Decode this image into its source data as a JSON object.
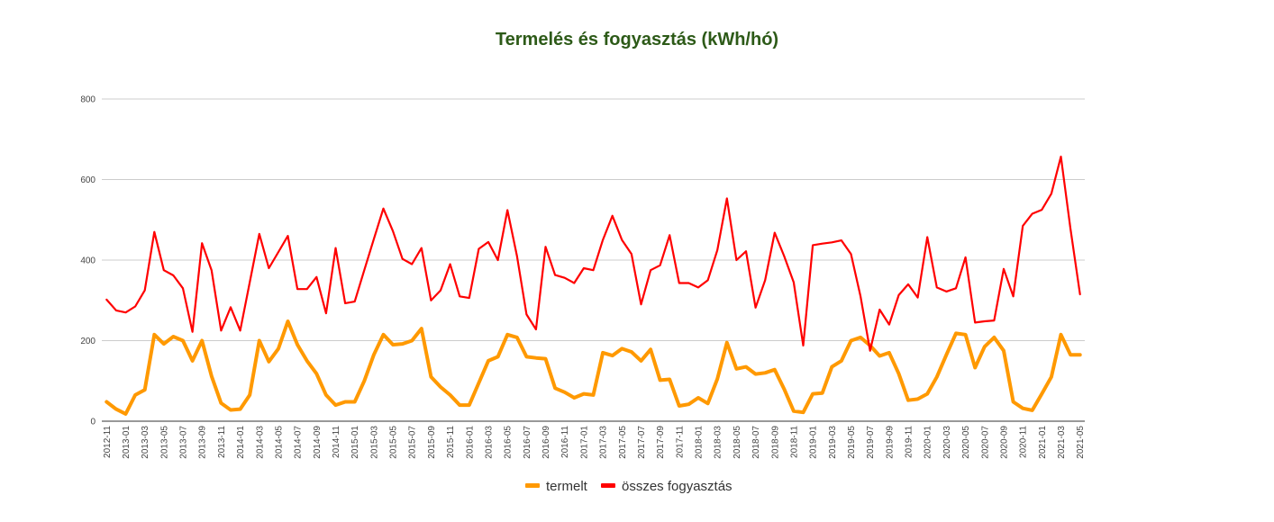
{
  "chart_data": {
    "type": "line",
    "title": "Termelés és fogyasztás (kWh/hó)",
    "xlabel": "",
    "ylabel": "",
    "ylim": [
      0,
      800
    ],
    "yticks": [
      "0",
      "200",
      "400",
      "600",
      "800"
    ],
    "grid": true,
    "legend_position": "bottom",
    "x": [
      "2012-11",
      "2012-12",
      "2013-01",
      "2013-02",
      "2013-03",
      "2013-04",
      "2013-05",
      "2013-06",
      "2013-07",
      "2013-08",
      "2013-09",
      "2013-10",
      "2013-11",
      "2013-12",
      "2014-01",
      "2014-02",
      "2014-03",
      "2014-04",
      "2014-05",
      "2014-06",
      "2014-07",
      "2014-08",
      "2014-09",
      "2014-10",
      "2014-11",
      "2014-12",
      "2015-01",
      "2015-02",
      "2015-03",
      "2015-04",
      "2015-05",
      "2015-06",
      "2015-07",
      "2015-08",
      "2015-09",
      "2015-10",
      "2015-11",
      "2015-12",
      "2016-01",
      "2016-02",
      "2016-03",
      "2016-04",
      "2016-05",
      "2016-06",
      "2016-07",
      "2016-08",
      "2016-09",
      "2016-10",
      "2016-11",
      "2016-12",
      "2017-01",
      "2017-02",
      "2017-03",
      "2017-04",
      "2017-05",
      "2017-06",
      "2017-07",
      "2017-08",
      "2017-09",
      "2017-10",
      "2017-11",
      "2017-12",
      "2018-01",
      "2018-02",
      "2018-03",
      "2018-04",
      "2018-05",
      "2018-06",
      "2018-07",
      "2018-08",
      "2018-09",
      "2018-10",
      "2018-11",
      "2018-12",
      "2019-01",
      "2019-02",
      "2019-03",
      "2019-04",
      "2019-05",
      "2019-06",
      "2019-07",
      "2019-08",
      "2019-09",
      "2019-10",
      "2019-11",
      "2019-12",
      "2020-01",
      "2020-02",
      "2020-03",
      "2020-04",
      "2020-05",
      "2020-06",
      "2020-07",
      "2020-08",
      "2020-09",
      "2020-10",
      "2020-11",
      "2020-12",
      "2021-01",
      "2021-02",
      "2021-03",
      "2021-04",
      "2021-05"
    ],
    "series": [
      {
        "name": "termelt",
        "color": "#FF9900",
        "values": [
          48,
          30,
          18,
          65,
          78,
          215,
          192,
          210,
          200,
          150,
          200,
          112,
          45,
          28,
          30,
          65,
          200,
          148,
          180,
          248,
          190,
          150,
          118,
          65,
          40,
          48,
          48,
          100,
          165,
          215,
          190,
          192,
          200,
          230,
          110,
          85,
          65,
          40,
          40,
          95,
          150,
          160,
          215,
          208,
          160,
          157,
          155,
          82,
          72,
          58,
          68,
          65,
          170,
          163,
          180,
          172,
          150,
          178,
          102,
          104,
          38,
          42,
          58,
          44,
          105,
          195,
          130,
          135,
          117,
          120,
          128,
          80,
          25,
          22,
          68,
          70,
          135,
          150,
          200,
          208,
          188,
          162,
          170,
          118,
          52,
          55,
          68,
          110,
          165,
          218,
          215,
          133,
          185,
          208,
          175,
          48,
          32,
          27,
          68,
          110,
          215,
          165,
          165
        ]
      },
      {
        "name": "összes fogyasztás",
        "color": "#FF0000",
        "values": [
          302,
          275,
          270,
          285,
          325,
          470,
          375,
          362,
          330,
          222,
          442,
          375,
          225,
          283,
          225,
          345,
          465,
          380,
          420,
          460,
          328,
          328,
          358,
          268,
          430,
          293,
          297,
          375,
          452,
          528,
          472,
          403,
          390,
          430,
          300,
          325,
          390,
          310,
          306,
          428,
          445,
          400,
          524,
          410,
          265,
          228,
          433,
          363,
          356,
          343,
          380,
          375,
          450,
          510,
          450,
          415,
          290,
          375,
          387,
          462,
          343,
          343,
          332,
          350,
          425,
          553,
          400,
          422,
          282,
          350,
          468,
          410,
          345,
          188,
          437,
          441,
          444,
          449,
          415,
          310,
          175,
          277,
          240,
          313,
          340,
          307,
          457,
          332,
          322,
          330,
          407,
          245,
          248,
          250,
          378,
          310,
          485,
          515,
          525,
          565,
          657,
          478,
          315
        ]
      }
    ]
  }
}
